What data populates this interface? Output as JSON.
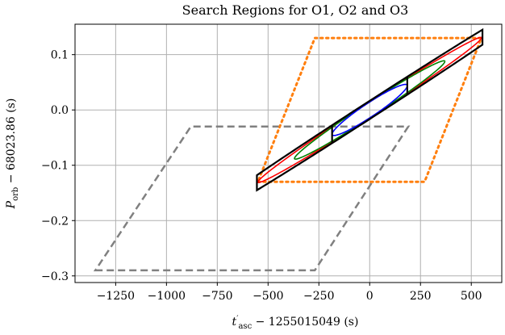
{
  "chart_data": {
    "type": "line",
    "title": "Search Regions for O1, O2 and O3",
    "xlabel": {
      "main": "t",
      "prime": "′",
      "sub": "asc",
      "rest": " − 1255015049 (s)"
    },
    "ylabel": {
      "main": "P",
      "sub": "orb",
      "rest": " − 68023.86 (s)"
    },
    "xlim": [
      -1450,
      650
    ],
    "ylim": [
      -0.312,
      0.155
    ],
    "grid": true,
    "legend": "none",
    "x_ticks": [
      {
        "value": -1250,
        "label": "−1250"
      },
      {
        "value": -1000,
        "label": "−1000"
      },
      {
        "value": -750,
        "label": "−750"
      },
      {
        "value": -500,
        "label": "−500"
      },
      {
        "value": -250,
        "label": "−250"
      },
      {
        "value": 0,
        "label": "0"
      },
      {
        "value": 250,
        "label": "250"
      },
      {
        "value": 500,
        "label": "500"
      }
    ],
    "y_ticks": [
      {
        "value": 0.1,
        "label": "0.1"
      },
      {
        "value": 0.0,
        "label": "0.0"
      },
      {
        "value": -0.1,
        "label": "−0.1"
      },
      {
        "value": -0.2,
        "label": "−0.2"
      },
      {
        "value": -0.3,
        "label": "−0.3"
      }
    ],
    "parallelograms": [
      {
        "color": "#808080",
        "style": "dashed",
        "points": [
          [
            -1350,
            -0.29
          ],
          [
            -270,
            -0.29
          ],
          [
            190,
            -0.03
          ],
          [
            -880,
            -0.03
          ]
        ]
      },
      {
        "color": "#ff7f0e",
        "style": "dotted",
        "points": [
          [
            -550,
            -0.13
          ],
          [
            270,
            -0.13
          ],
          [
            550,
            0.13
          ],
          [
            -270,
            0.13
          ]
        ]
      }
    ],
    "ellipses": [
      {
        "color": "#ff0000",
        "center": [
          0,
          0
        ],
        "half_width": 550,
        "y_slope": 0.000237,
        "y_halfwidth": 0.0145
      },
      {
        "color": "#008000",
        "center": [
          0,
          0
        ],
        "half_width": 370,
        "y_slope": 0.000237,
        "y_halfwidth": 0.0145
      },
      {
        "color": "#0000ff",
        "center": [
          0,
          0
        ],
        "half_width": 185,
        "y_slope": 0.000237,
        "y_halfwidth": 0.0145
      }
    ],
    "black_band": {
      "color": "#000000",
      "x_range": [
        -555,
        555
      ],
      "y_slope": 0.000237,
      "y_halfwidth": 0.0165,
      "dividers_x": [
        -185,
        185
      ]
    }
  }
}
